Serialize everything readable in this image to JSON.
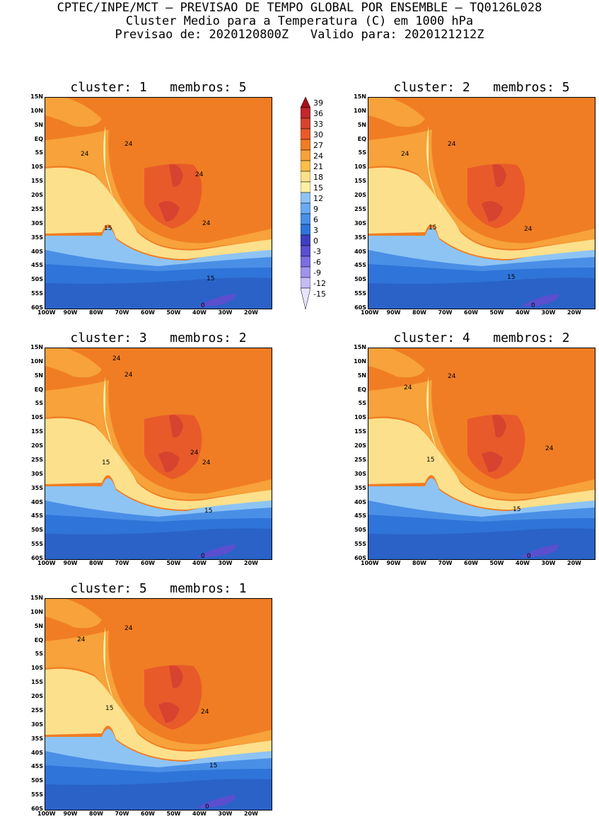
{
  "header": {
    "line1": "CPTEC/INPE/MCT – PREVISAO DE TEMPO GLOBAL POR ENSEMBLE – TQ0126L028",
    "line2": "Cluster Medio para a Temperatura (C) em 1000 hPa",
    "line3": "Previsao de: 2020120800Z   Valido para: 2020121212Z"
  },
  "axes": {
    "lat_labels": [
      "15N",
      "10N",
      "5N",
      "EQ",
      "5S",
      "10S",
      "15S",
      "20S",
      "25S",
      "30S",
      "35S",
      "40S",
      "45S",
      "50S",
      "55S",
      "60S"
    ],
    "lon_labels": [
      "100W",
      "90W",
      "80W",
      "70W",
      "60W",
      "50W",
      "40W",
      "30W",
      "20W"
    ]
  },
  "colorbar": {
    "labels": [
      "39",
      "36",
      "33",
      "30",
      "27",
      "24",
      "21",
      "18",
      "15",
      "12",
      "9",
      "6",
      "3",
      "0",
      "-3",
      "-6",
      "-9",
      "-12",
      "-15"
    ],
    "colors": [
      "#a50f15",
      "#c0282d",
      "#d7432f",
      "#e85a2a",
      "#f07d24",
      "#f7a23a",
      "#fbbf4a",
      "#fde08b",
      "#fdf0a6",
      "#8ec4f4",
      "#6aaaf0",
      "#4a8fe6",
      "#2f74d8",
      "#3e3fc0",
      "#5b4fd0",
      "#7c6ee0",
      "#a093ec",
      "#c4bcf5",
      "#e8e4fc"
    ]
  },
  "panels": [
    {
      "title": "cluster: 1   membros: 5",
      "labels": {
        "a": "24",
        "b": "24",
        "c": "24",
        "d": "24",
        "e": "15",
        "f": "15",
        "g": "0"
      }
    },
    {
      "title": "cluster: 2   membros: 5",
      "labels": {
        "a": "24",
        "b": "24",
        "c": "24",
        "d": "15",
        "e": "15",
        "f": "0"
      }
    },
    {
      "title": "cluster: 3   membros: 2",
      "labels": {
        "a": "24",
        "b": "24",
        "c": "24",
        "d": "24",
        "e": "15",
        "f": "15",
        "g": "0"
      }
    },
    {
      "title": "cluster: 4   membros: 2",
      "labels": {
        "a": "24",
        "b": "24",
        "c": "24",
        "d": "15",
        "e": "15",
        "f": "0"
      }
    },
    {
      "title": "cluster: 5   membros: 1",
      "labels": {
        "a": "24",
        "b": "24",
        "c": "24",
        "d": "15",
        "e": "15",
        "f": "0"
      }
    }
  ]
}
